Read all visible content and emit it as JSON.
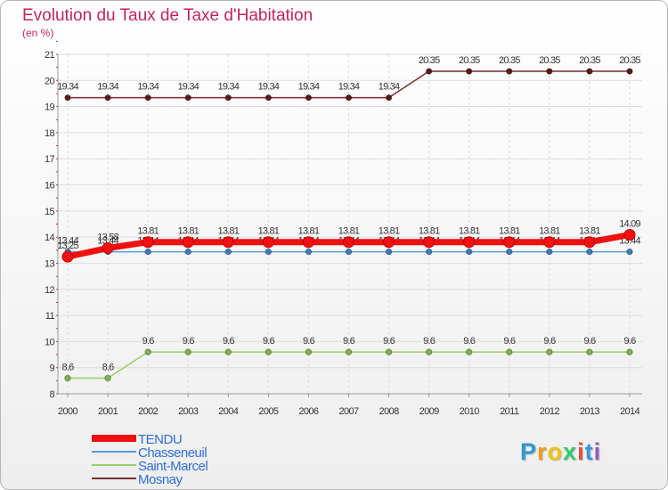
{
  "title": "Evolution du Taux de Taxe d'Habitation",
  "subtitle": "(en %)",
  "logo": "Proxiti",
  "chart_data": {
    "type": "line",
    "title": "Evolution du Taux de Taxe d'Habitation",
    "ylabel": "(en %)",
    "xlabel": "",
    "ylim": [
      8,
      21
    ],
    "y_ticks": [
      8,
      9,
      10,
      11,
      12,
      13,
      14,
      15,
      16,
      17,
      18,
      19,
      20,
      21
    ],
    "x": [
      "2000",
      "2001",
      "2002",
      "2003",
      "2004",
      "2005",
      "2006",
      "2007",
      "2008",
      "2009",
      "2010",
      "2011",
      "2012",
      "2013",
      "2014"
    ],
    "series": [
      {
        "name": "Mosnay",
        "color": "#7a2f2f",
        "marker": "#5a1a1a",
        "values": [
          19.34,
          19.34,
          19.34,
          19.34,
          19.34,
          19.34,
          19.34,
          19.34,
          19.34,
          20.35,
          20.35,
          20.35,
          20.35,
          20.35,
          20.35
        ],
        "labels": [
          "19.34",
          "19.34",
          "19.34",
          "19.34",
          "19.34",
          "19.34",
          "19.34",
          "19.34",
          "19.34",
          "20.35",
          "20.35",
          "20.35",
          "20.35",
          "20.35",
          "20.35"
        ]
      },
      {
        "name": "Saint-Marcel",
        "color": "#99d06a",
        "marker": "#7ab84a",
        "values": [
          8.6,
          8.6,
          9.6,
          9.6,
          9.6,
          9.6,
          9.6,
          9.6,
          9.6,
          9.6,
          9.6,
          9.6,
          9.6,
          9.6,
          9.6
        ],
        "labels": [
          "8.6",
          "8.6",
          "9.6",
          "9.6",
          "9.6",
          "9.6",
          "9.6",
          "9.6",
          "9.6",
          "9.6",
          "9.6",
          "9.6",
          "9.6",
          "9.6",
          "9.6"
        ]
      },
      {
        "name": "Chasseneuil",
        "color": "#5b9bd5",
        "marker": "#3a7cc0",
        "values": [
          13.44,
          13.44,
          13.44,
          13.44,
          13.44,
          13.44,
          13.44,
          13.44,
          13.44,
          13.44,
          13.44,
          13.44,
          13.44,
          13.44,
          13.44
        ],
        "labels": [
          "13.44",
          "13.44",
          "13.44",
          "13.44",
          "13.44",
          "13.44",
          "13.44",
          "13.44",
          "13.44",
          "13.44",
          "13.44",
          "13.44",
          "13.44",
          "13.44",
          "13.44"
        ]
      },
      {
        "name": "TENDU",
        "color": "#ee1111",
        "marker": "#ee1111",
        "values": [
          13.25,
          13.58,
          13.81,
          13.81,
          13.81,
          13.81,
          13.81,
          13.81,
          13.81,
          13.81,
          13.81,
          13.81,
          13.81,
          13.81,
          14.09
        ],
        "labels": [
          "13.25",
          "13.58",
          "13.81",
          "13.81",
          "13.81",
          "13.81",
          "13.81",
          "13.81",
          "13.81",
          "13.81",
          "13.81",
          "13.81",
          "13.81",
          "13.81",
          "14.09"
        ]
      }
    ],
    "legend": [
      "TENDU",
      "Chasseneuil",
      "Saint-Marcel",
      "Mosnay"
    ],
    "legend_position": "bottom-left"
  }
}
